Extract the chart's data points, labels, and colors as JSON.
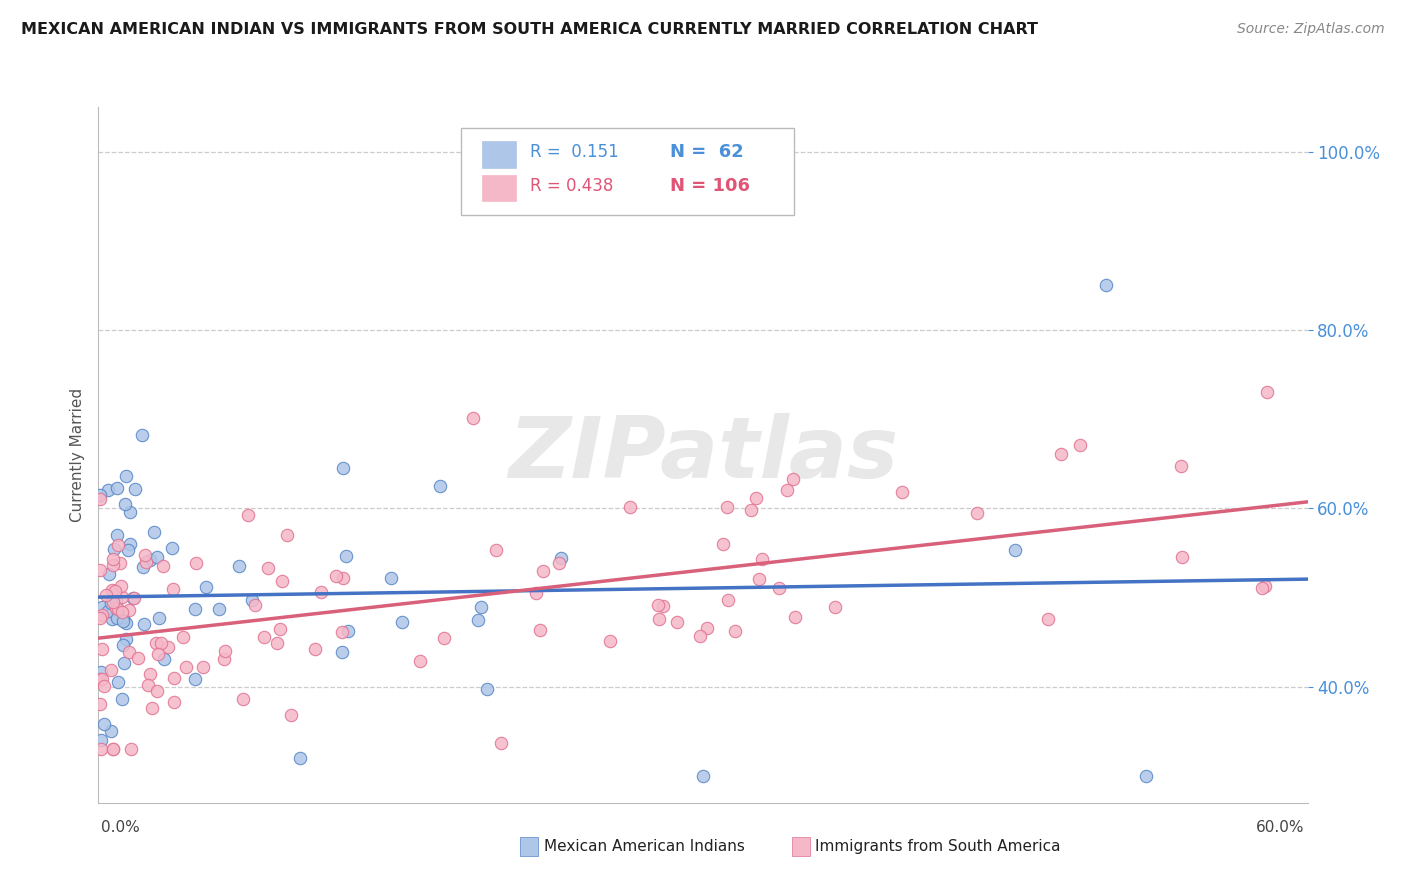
{
  "title": "MEXICAN AMERICAN INDIAN VS IMMIGRANTS FROM SOUTH AMERICA CURRENTLY MARRIED CORRELATION CHART",
  "source": "Source: ZipAtlas.com",
  "ylabel": "Currently Married",
  "xlim": [
    0.0,
    60.0
  ],
  "ylim": [
    27.0,
    105.0
  ],
  "yticks": [
    40.0,
    60.0,
    80.0,
    100.0
  ],
  "color_blue_fill": "#aec6e8",
  "color_pink_fill": "#f5b8c8",
  "color_blue_edge": "#5585c5",
  "color_pink_edge": "#e07090",
  "color_blue_text": "#4a90d9",
  "color_pink_text": "#e05575",
  "trendline_blue": "#4472c4",
  "trendline_pink": "#d9607a",
  "series1_label": "Mexican American Indians",
  "series2_label": "Immigrants from South America",
  "R1": 0.151,
  "N1": 62,
  "R2": 0.438,
  "N2": 106,
  "watermark": "ZIPatlas"
}
